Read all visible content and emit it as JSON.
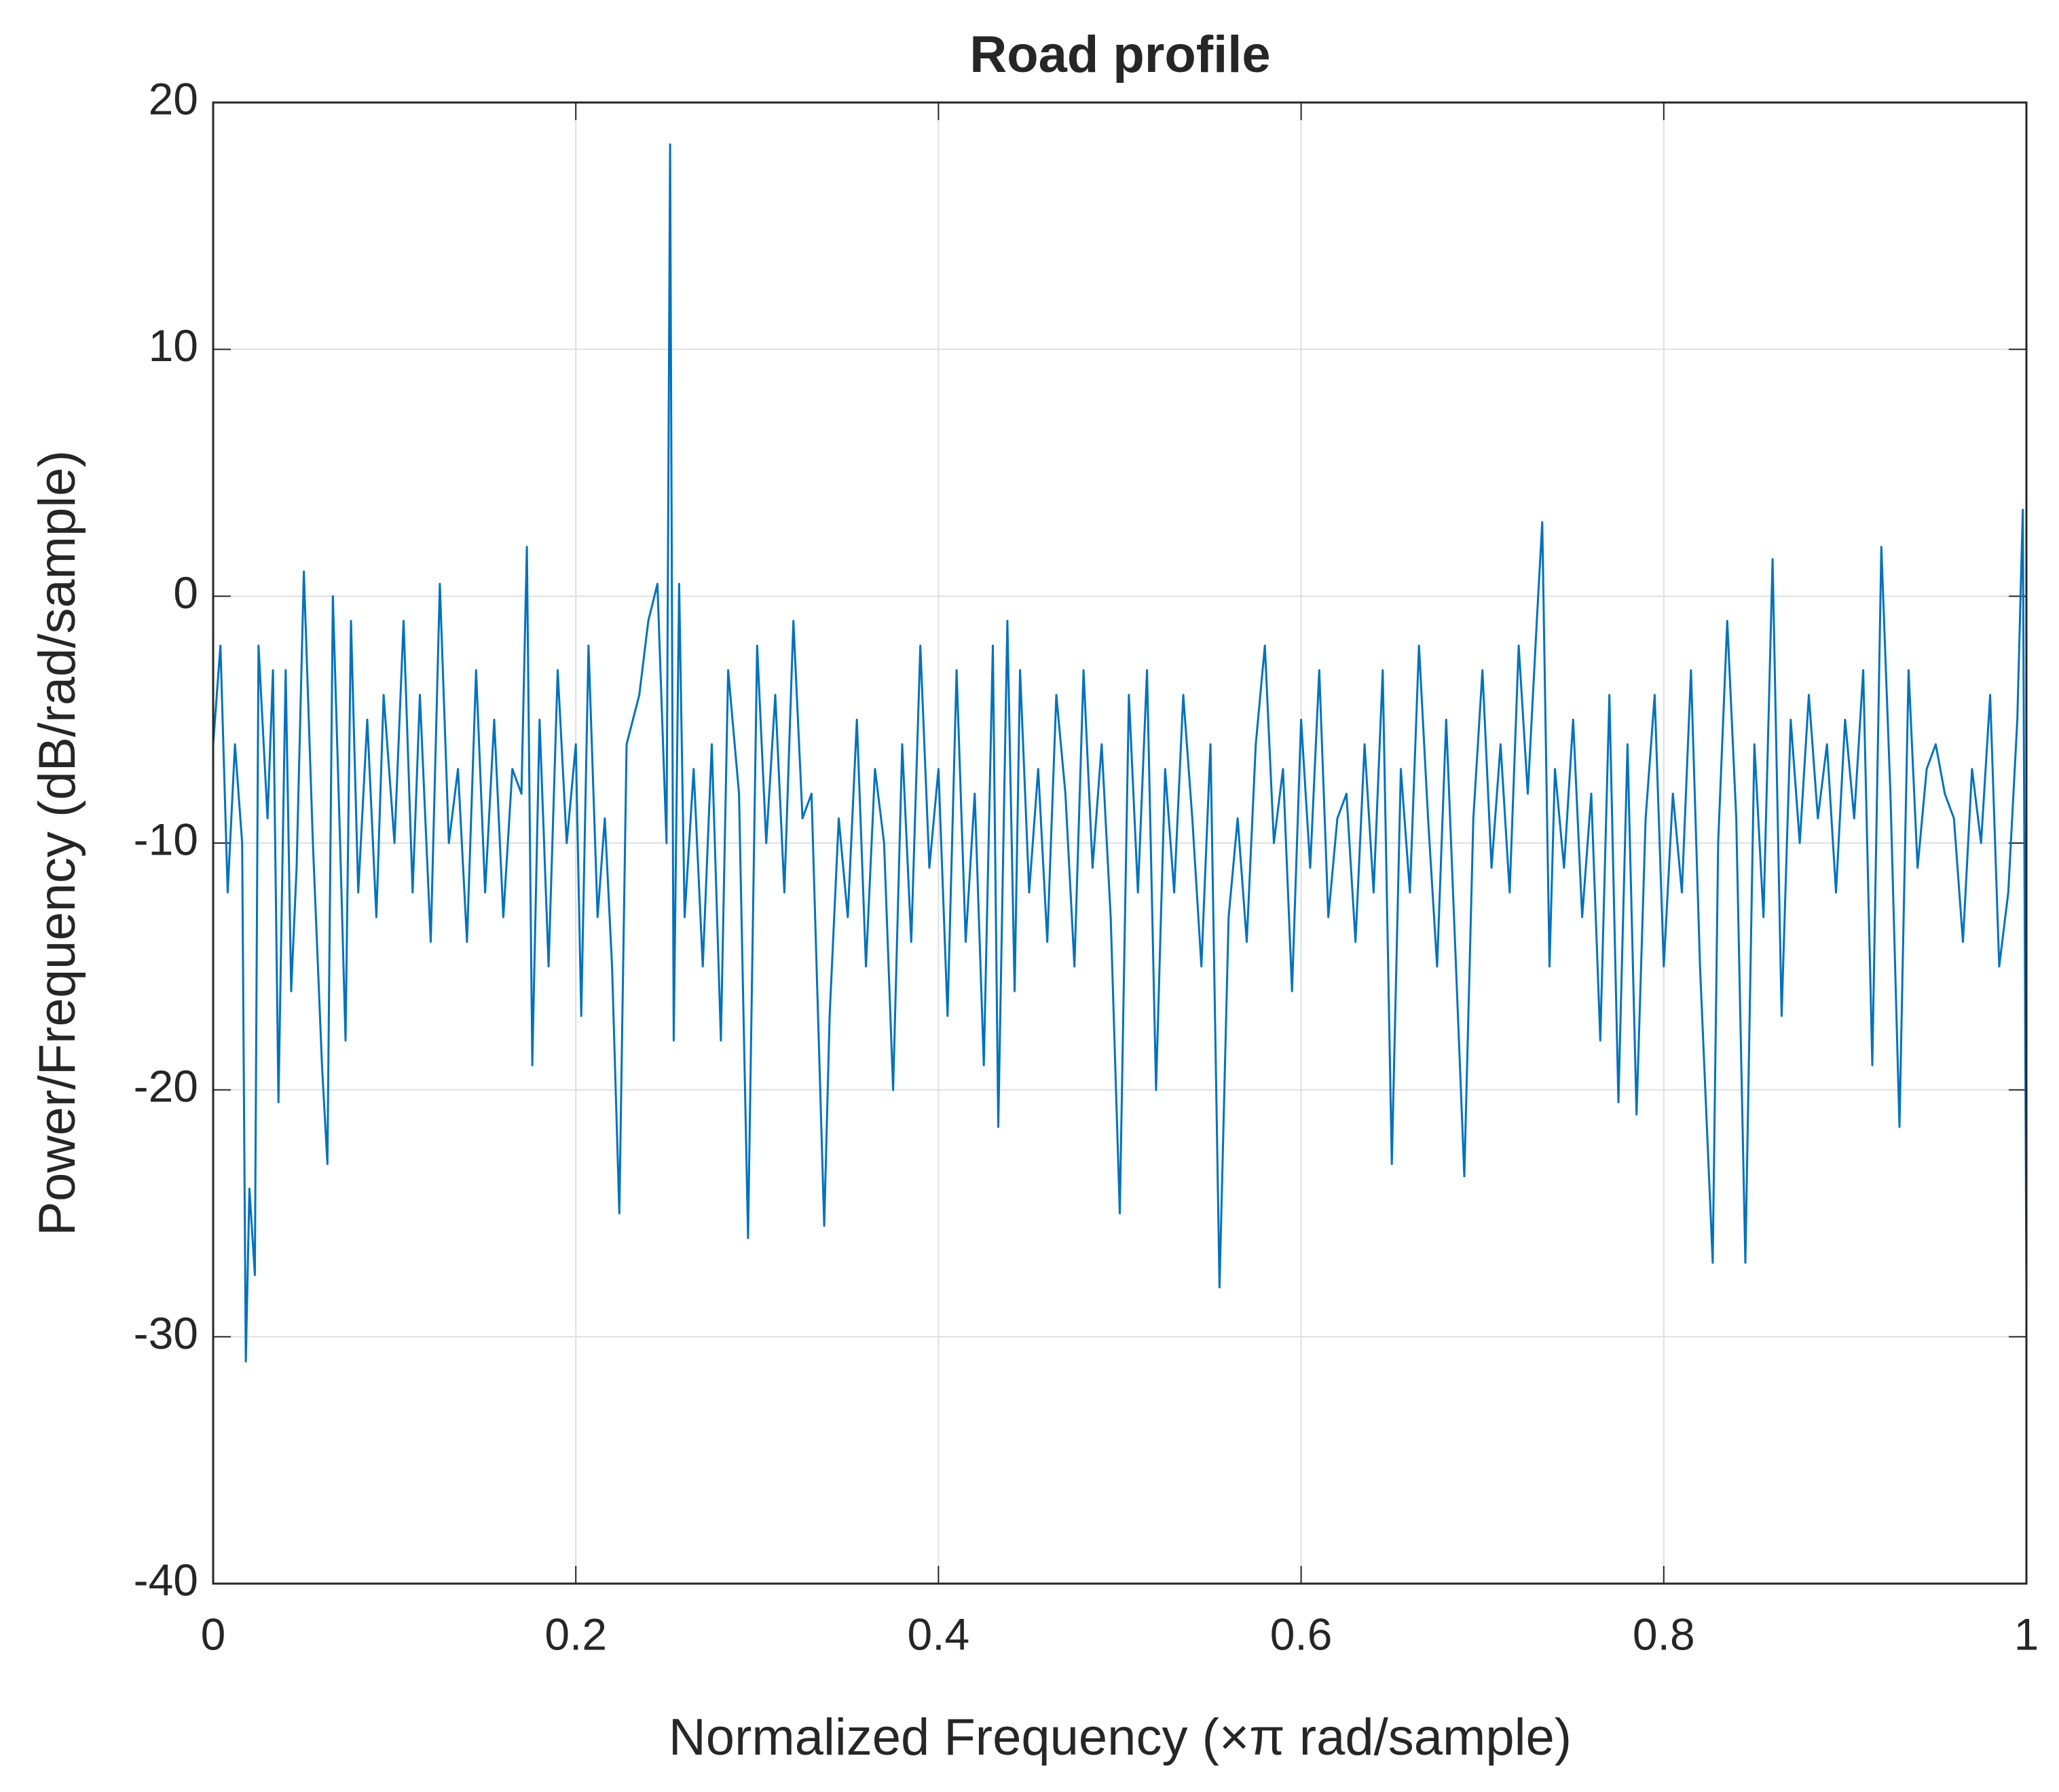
{
  "chart_data": {
    "type": "line",
    "title": "Road profile",
    "xlabel": "Normalized Frequency (×π rad/sample)",
    "ylabel": "Power/Frequency (dB/rad/sample)",
    "xlim": [
      0,
      1
    ],
    "xticks": [
      0,
      0.2,
      0.4,
      0.6,
      0.8,
      1
    ],
    "ylim": [
      -40,
      20
    ],
    "yticks": [
      -40,
      -30,
      -20,
      -10,
      0,
      10,
      20
    ],
    "grid": true,
    "series": [
      {
        "color": "#0072bd",
        "x": [
          0,
          0.004,
          0.008,
          0.012,
          0.016,
          0.018,
          0.02,
          0.023,
          0.025,
          0.03,
          0.033,
          0.036,
          0.04,
          0.043,
          0.046,
          0.05,
          0.055,
          0.06,
          0.063,
          0.066,
          0.07,
          0.073,
          0.076,
          0.08,
          0.085,
          0.09,
          0.094,
          0.1,
          0.105,
          0.11,
          0.114,
          0.12,
          0.125,
          0.13,
          0.135,
          0.14,
          0.145,
          0.15,
          0.155,
          0.16,
          0.165,
          0.17,
          0.173,
          0.176,
          0.18,
          0.185,
          0.19,
          0.195,
          0.2,
          0.203,
          0.207,
          0.212,
          0.216,
          0.22,
          0.224,
          0.228,
          0.235,
          0.24,
          0.245,
          0.25,
          0.252,
          0.254,
          0.257,
          0.26,
          0.265,
          0.27,
          0.275,
          0.28,
          0.284,
          0.29,
          0.295,
          0.3,
          0.305,
          0.31,
          0.315,
          0.32,
          0.325,
          0.33,
          0.337,
          0.34,
          0.345,
          0.35,
          0.355,
          0.36,
          0.365,
          0.37,
          0.375,
          0.38,
          0.385,
          0.39,
          0.395,
          0.4,
          0.405,
          0.41,
          0.415,
          0.42,
          0.425,
          0.43,
          0.433,
          0.438,
          0.442,
          0.445,
          0.45,
          0.455,
          0.46,
          0.465,
          0.47,
          0.475,
          0.48,
          0.485,
          0.49,
          0.495,
          0.5,
          0.505,
          0.51,
          0.515,
          0.52,
          0.525,
          0.53,
          0.535,
          0.54,
          0.545,
          0.55,
          0.555,
          0.56,
          0.565,
          0.57,
          0.575,
          0.58,
          0.585,
          0.59,
          0.595,
          0.6,
          0.605,
          0.61,
          0.615,
          0.62,
          0.625,
          0.63,
          0.635,
          0.64,
          0.645,
          0.65,
          0.655,
          0.66,
          0.665,
          0.67,
          0.675,
          0.68,
          0.69,
          0.695,
          0.7,
          0.705,
          0.71,
          0.715,
          0.72,
          0.725,
          0.73,
          0.733,
          0.737,
          0.74,
          0.745,
          0.75,
          0.755,
          0.76,
          0.765,
          0.77,
          0.775,
          0.78,
          0.785,
          0.79,
          0.795,
          0.8,
          0.805,
          0.81,
          0.815,
          0.82,
          0.827,
          0.83,
          0.835,
          0.84,
          0.845,
          0.85,
          0.855,
          0.86,
          0.865,
          0.87,
          0.875,
          0.88,
          0.885,
          0.89,
          0.895,
          0.9,
          0.905,
          0.91,
          0.915,
          0.92,
          0.925,
          0.93,
          0.935,
          0.94,
          0.945,
          0.95,
          0.955,
          0.96,
          0.965,
          0.97,
          0.975,
          0.98,
          0.985,
          0.99,
          0.995,
          0.998,
          1
        ],
        "values": [
          -6,
          -2,
          -12,
          -6,
          -10,
          -31,
          -24,
          -27.5,
          -2,
          -9,
          -3,
          -20.5,
          -3,
          -16,
          -11,
          1,
          -10,
          -19,
          -23,
          0,
          -10,
          -18,
          -1,
          -12,
          -5,
          -13,
          -4,
          -10,
          -1,
          -12,
          -4,
          -14,
          0.5,
          -10,
          -7,
          -14,
          -3,
          -12,
          -5,
          -13,
          -7,
          -8,
          2,
          -19,
          -5,
          -15,
          -3,
          -10,
          -6,
          -17,
          -2,
          -13,
          -9,
          -15,
          -25,
          -6,
          -4,
          -1,
          0.5,
          -10,
          18.3,
          -18,
          0.5,
          -13,
          -7,
          -15,
          -6,
          -18,
          -3,
          -8,
          -26,
          -2,
          -10,
          -4,
          -12,
          -1,
          -9,
          -8,
          -25.5,
          -17,
          -9,
          -13,
          -5,
          -15,
          -7,
          -10,
          -20,
          -6,
          -14,
          -2,
          -11,
          -7,
          -17,
          -3,
          -14,
          -8,
          -19,
          -2,
          -21.5,
          -1,
          -16,
          -3,
          -12,
          -7,
          -14,
          -4,
          -8,
          -15,
          -3,
          -11,
          -6,
          -13,
          -25,
          -4,
          -12,
          -3,
          -20,
          -7,
          -12,
          -4,
          -9,
          -15,
          -6,
          -28,
          -13,
          -9,
          -14,
          -6,
          -2,
          -10,
          -7,
          -16,
          -5,
          -11,
          -3,
          -13,
          -9,
          -8,
          -14,
          -6,
          -12,
          -3,
          -23,
          -7,
          -12,
          -2,
          -9,
          -15,
          -5,
          -23.5,
          -9,
          -3,
          -11,
          -6,
          -12,
          -2,
          -8,
          -1,
          3,
          -15,
          -7,
          -11,
          -5,
          -13,
          -8,
          -18,
          -4,
          -20.5,
          -6,
          -21,
          -9,
          -4,
          -15,
          -8,
          -12,
          -3,
          -15,
          -27,
          -10,
          -1,
          -9,
          -27,
          -6,
          -13,
          1.5,
          -17,
          -5,
          -10,
          -4,
          -9,
          -6,
          -12,
          -5,
          -9,
          -3,
          -19,
          2,
          -8,
          -21.5,
          -3,
          -11,
          -7,
          -6,
          -8,
          -9,
          -14,
          -7,
          -10,
          -4,
          -15,
          -12,
          -5,
          3.5,
          -28
        ]
      }
    ]
  }
}
